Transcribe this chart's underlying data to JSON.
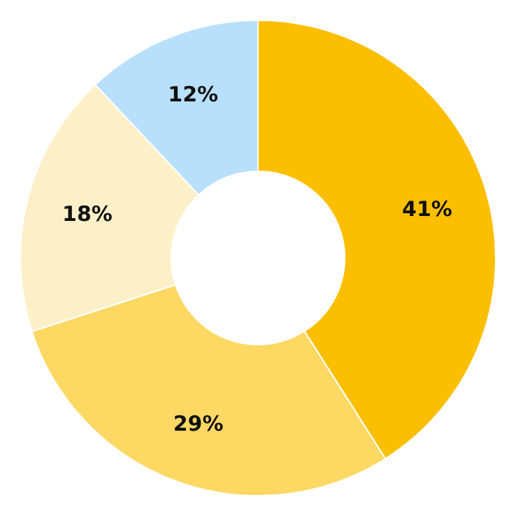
{
  "chart_data": {
    "type": "donut",
    "categories": [
      null,
      null,
      null,
      null
    ],
    "values": [
      41,
      29,
      18,
      12
    ],
    "colors": [
      "#fbbf00",
      "#fdd863",
      "#fdf0c8",
      "#b8e0fb"
    ],
    "value_labels": [
      "41%",
      "29%",
      "18%",
      "12%"
    ],
    "legend": false
  }
}
